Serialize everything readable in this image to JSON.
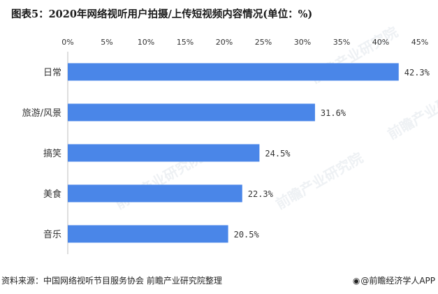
{
  "title": "图表5：2020年网络视听用户拍摄/上传短视频内容情况(单位：%)",
  "source": "资料来源：中国网络视听节目服务协会 前瞻产业研究院整理",
  "brand": "@前瞻经济学人APP",
  "watermark": "前瞻产业研究院",
  "colors": {
    "bar": "#4a86e8",
    "axis": "#bfbfbf",
    "text": "#333333"
  },
  "chart_data": {
    "type": "bar",
    "orientation": "horizontal",
    "categories": [
      "日常",
      "旅游/风景",
      "搞笑",
      "美食",
      "音乐"
    ],
    "values": [
      42.3,
      31.6,
      24.5,
      22.3,
      20.5
    ],
    "value_labels": [
      "42.3%",
      "31.6%",
      "24.5%",
      "22.3%",
      "20.5%"
    ],
    "xlim": [
      0,
      45
    ],
    "xticks": [
      "0%",
      "5%",
      "10%",
      "15%",
      "20%",
      "25%",
      "30%",
      "35%",
      "40%",
      "45%"
    ],
    "xaxis_position": "top",
    "grid": false,
    "legend": "none"
  }
}
